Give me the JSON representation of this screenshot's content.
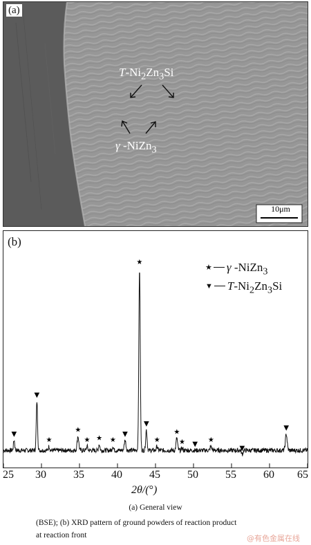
{
  "panel_a": {
    "label": "(a)",
    "annotations": [
      {
        "id": "t",
        "html": "<i>T</i>-Ni<sub>2</sub>Zn<sub>3</sub>Si",
        "text": "T-Ni2Zn3Si"
      },
      {
        "id": "g",
        "html": "<i>γ</i> -NiZn<sub>3</sub>",
        "text": "γ -NiZn3"
      }
    ],
    "scale_bar": "10μm"
  },
  "panel_b": {
    "label": "(b)",
    "legend": [
      {
        "marker": "★",
        "text": "γ -NiZn3"
      },
      {
        "marker": "▼",
        "text": "T-Ni2Zn3Si"
      }
    ]
  },
  "chart_data": {
    "type": "line",
    "xlabel": "2θ/(°)",
    "ylabel": "",
    "xlim": [
      25,
      65
    ],
    "ylim": [
      0,
      100
    ],
    "x_ticks": [
      25,
      30,
      35,
      40,
      45,
      50,
      55,
      60,
      65
    ],
    "baseline": 6,
    "peaks": [
      {
        "x": 26.4,
        "y": 11,
        "w": 0.12
      },
      {
        "x": 29.4,
        "y": 30,
        "w": 0.12
      },
      {
        "x": 31.0,
        "y": 8,
        "w": 0.12
      },
      {
        "x": 34.8,
        "y": 13,
        "w": 0.15
      },
      {
        "x": 36.0,
        "y": 8,
        "w": 0.12
      },
      {
        "x": 37.6,
        "y": 9,
        "w": 0.12
      },
      {
        "x": 39.4,
        "y": 8,
        "w": 0.12
      },
      {
        "x": 41.0,
        "y": 11,
        "w": 0.15
      },
      {
        "x": 42.9,
        "y": 95,
        "w": 0.13
      },
      {
        "x": 43.8,
        "y": 16,
        "w": 0.13
      },
      {
        "x": 45.2,
        "y": 8,
        "w": 0.12
      },
      {
        "x": 47.8,
        "y": 12,
        "w": 0.14
      },
      {
        "x": 48.5,
        "y": 7,
        "w": 0.12
      },
      {
        "x": 50.2,
        "y": 6,
        "w": 0.12
      },
      {
        "x": 52.3,
        "y": 8,
        "w": 0.14
      },
      {
        "x": 56.4,
        "y": 4,
        "w": 0.12
      },
      {
        "x": 62.2,
        "y": 14,
        "w": 0.16
      }
    ],
    "star_markers": [
      31.0,
      34.8,
      36.0,
      37.6,
      39.4,
      42.9,
      45.2,
      47.8,
      48.5,
      52.3
    ],
    "triangle_markers": [
      26.4,
      29.4,
      41.0,
      43.8,
      50.2,
      56.4,
      62.2
    ]
  },
  "captions": {
    "general_view": "(a) General view",
    "line1": "(BSE); (b) XRD pattern of ground powders of reaction product",
    "line2": "at reaction front"
  },
  "watermark": "@有色金属在线",
  "colors": {
    "dark_region": "#5a5a5a",
    "light_region": "#9c9c9c"
  }
}
